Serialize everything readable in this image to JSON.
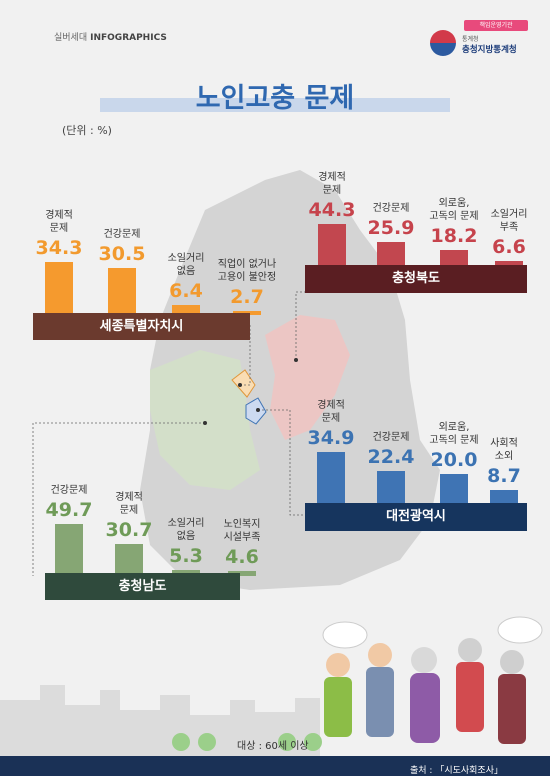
{
  "header": {
    "series_label": "실버세대",
    "brand": "INFOGRAPHICS"
  },
  "logo": {
    "badge": "책임운영기관",
    "agency_sub": "통계청",
    "agency_name": "충청지방통계청"
  },
  "title": "노인고충 문제",
  "unit": "(단위 : %)",
  "target": "대상 : 60세 이상",
  "source": "출처 : 「시도사회조사」",
  "colors": {
    "sejong": "#f59a2e",
    "chungbuk": "#c2474f",
    "daejeon": "#3f74b4",
    "chungnam": "#86a674",
    "sejong_band": "#6b3a2e",
    "chungbuk_band": "#5a1e22",
    "daejeon_band": "#16355e",
    "chungnam_band": "#2f4a3c"
  },
  "chart_data": [
    {
      "type": "bar",
      "region": "세종특별자치시",
      "categories": [
        "경제적\n문제",
        "건강문제",
        "소일거리\n없음",
        "직업이 없거나\n고용이 불안정"
      ],
      "values": [
        34.3,
        30.5,
        6.4,
        2.7
      ]
    },
    {
      "type": "bar",
      "region": "충청북도",
      "categories": [
        "경제적\n문제",
        "건강문제",
        "외로움,\n고독의 문제",
        "소일거리\n부족"
      ],
      "values": [
        44.3,
        25.9,
        18.2,
        6.6
      ]
    },
    {
      "type": "bar",
      "region": "대전광역시",
      "categories": [
        "경제적\n문제",
        "건강문제",
        "외로움,\n고독의 문제",
        "사회적\n소외"
      ],
      "values": [
        34.9,
        22.4,
        20.0,
        8.7
      ]
    },
    {
      "type": "bar",
      "region": "충청남도",
      "categories": [
        "건강문제",
        "경제적\n문제",
        "소일거리\n없음",
        "노인복지\n시설부족"
      ],
      "values": [
        49.7,
        30.7,
        5.3,
        4.6
      ]
    }
  ]
}
